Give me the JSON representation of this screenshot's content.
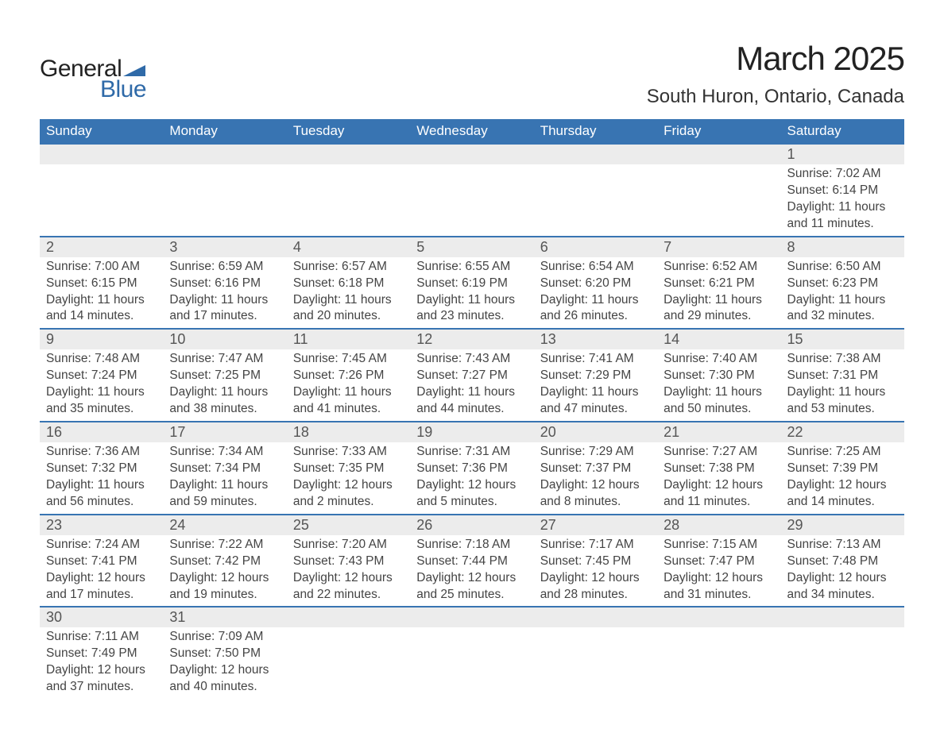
{
  "brand": {
    "line1": "General",
    "line2": "Blue",
    "logo_color": "#2f6aa8"
  },
  "title": "March 2025",
  "location": "South Huron, Ontario, Canada",
  "colors": {
    "header_bg": "#3874b2",
    "header_text": "#ffffff",
    "daynum_bg": "#ececec",
    "row_border": "#3874b2",
    "body_text": "#444444",
    "page_bg": "#ffffff"
  },
  "fonts": {
    "title_size": 42,
    "location_size": 24,
    "dayheader_size": 17,
    "daynum_size": 18,
    "cell_size": 15.5
  },
  "day_headers": [
    "Sunday",
    "Monday",
    "Tuesday",
    "Wednesday",
    "Thursday",
    "Friday",
    "Saturday"
  ],
  "grid": {
    "columns": 7,
    "rows": 6,
    "start_weekday_index": 6,
    "days_in_month": 31
  },
  "weeks": [
    [
      null,
      null,
      null,
      null,
      null,
      null,
      {
        "n": 1,
        "sunrise": "7:02 AM",
        "sunset": "6:14 PM",
        "daylight": "11 hours and 11 minutes."
      }
    ],
    [
      {
        "n": 2,
        "sunrise": "7:00 AM",
        "sunset": "6:15 PM",
        "daylight": "11 hours and 14 minutes."
      },
      {
        "n": 3,
        "sunrise": "6:59 AM",
        "sunset": "6:16 PM",
        "daylight": "11 hours and 17 minutes."
      },
      {
        "n": 4,
        "sunrise": "6:57 AM",
        "sunset": "6:18 PM",
        "daylight": "11 hours and 20 minutes."
      },
      {
        "n": 5,
        "sunrise": "6:55 AM",
        "sunset": "6:19 PM",
        "daylight": "11 hours and 23 minutes."
      },
      {
        "n": 6,
        "sunrise": "6:54 AM",
        "sunset": "6:20 PM",
        "daylight": "11 hours and 26 minutes."
      },
      {
        "n": 7,
        "sunrise": "6:52 AM",
        "sunset": "6:21 PM",
        "daylight": "11 hours and 29 minutes."
      },
      {
        "n": 8,
        "sunrise": "6:50 AM",
        "sunset": "6:23 PM",
        "daylight": "11 hours and 32 minutes."
      }
    ],
    [
      {
        "n": 9,
        "sunrise": "7:48 AM",
        "sunset": "7:24 PM",
        "daylight": "11 hours and 35 minutes."
      },
      {
        "n": 10,
        "sunrise": "7:47 AM",
        "sunset": "7:25 PM",
        "daylight": "11 hours and 38 minutes."
      },
      {
        "n": 11,
        "sunrise": "7:45 AM",
        "sunset": "7:26 PM",
        "daylight": "11 hours and 41 minutes."
      },
      {
        "n": 12,
        "sunrise": "7:43 AM",
        "sunset": "7:27 PM",
        "daylight": "11 hours and 44 minutes."
      },
      {
        "n": 13,
        "sunrise": "7:41 AM",
        "sunset": "7:29 PM",
        "daylight": "11 hours and 47 minutes."
      },
      {
        "n": 14,
        "sunrise": "7:40 AM",
        "sunset": "7:30 PM",
        "daylight": "11 hours and 50 minutes."
      },
      {
        "n": 15,
        "sunrise": "7:38 AM",
        "sunset": "7:31 PM",
        "daylight": "11 hours and 53 minutes."
      }
    ],
    [
      {
        "n": 16,
        "sunrise": "7:36 AM",
        "sunset": "7:32 PM",
        "daylight": "11 hours and 56 minutes."
      },
      {
        "n": 17,
        "sunrise": "7:34 AM",
        "sunset": "7:34 PM",
        "daylight": "11 hours and 59 minutes."
      },
      {
        "n": 18,
        "sunrise": "7:33 AM",
        "sunset": "7:35 PM",
        "daylight": "12 hours and 2 minutes."
      },
      {
        "n": 19,
        "sunrise": "7:31 AM",
        "sunset": "7:36 PM",
        "daylight": "12 hours and 5 minutes."
      },
      {
        "n": 20,
        "sunrise": "7:29 AM",
        "sunset": "7:37 PM",
        "daylight": "12 hours and 8 minutes."
      },
      {
        "n": 21,
        "sunrise": "7:27 AM",
        "sunset": "7:38 PM",
        "daylight": "12 hours and 11 minutes."
      },
      {
        "n": 22,
        "sunrise": "7:25 AM",
        "sunset": "7:39 PM",
        "daylight": "12 hours and 14 minutes."
      }
    ],
    [
      {
        "n": 23,
        "sunrise": "7:24 AM",
        "sunset": "7:41 PM",
        "daylight": "12 hours and 17 minutes."
      },
      {
        "n": 24,
        "sunrise": "7:22 AM",
        "sunset": "7:42 PM",
        "daylight": "12 hours and 19 minutes."
      },
      {
        "n": 25,
        "sunrise": "7:20 AM",
        "sunset": "7:43 PM",
        "daylight": "12 hours and 22 minutes."
      },
      {
        "n": 26,
        "sunrise": "7:18 AM",
        "sunset": "7:44 PM",
        "daylight": "12 hours and 25 minutes."
      },
      {
        "n": 27,
        "sunrise": "7:17 AM",
        "sunset": "7:45 PM",
        "daylight": "12 hours and 28 minutes."
      },
      {
        "n": 28,
        "sunrise": "7:15 AM",
        "sunset": "7:47 PM",
        "daylight": "12 hours and 31 minutes."
      },
      {
        "n": 29,
        "sunrise": "7:13 AM",
        "sunset": "7:48 PM",
        "daylight": "12 hours and 34 minutes."
      }
    ],
    [
      {
        "n": 30,
        "sunrise": "7:11 AM",
        "sunset": "7:49 PM",
        "daylight": "12 hours and 37 minutes."
      },
      {
        "n": 31,
        "sunrise": "7:09 AM",
        "sunset": "7:50 PM",
        "daylight": "12 hours and 40 minutes."
      },
      null,
      null,
      null,
      null,
      null
    ]
  ],
  "labels": {
    "sunrise": "Sunrise:",
    "sunset": "Sunset:",
    "daylight": "Daylight:"
  }
}
